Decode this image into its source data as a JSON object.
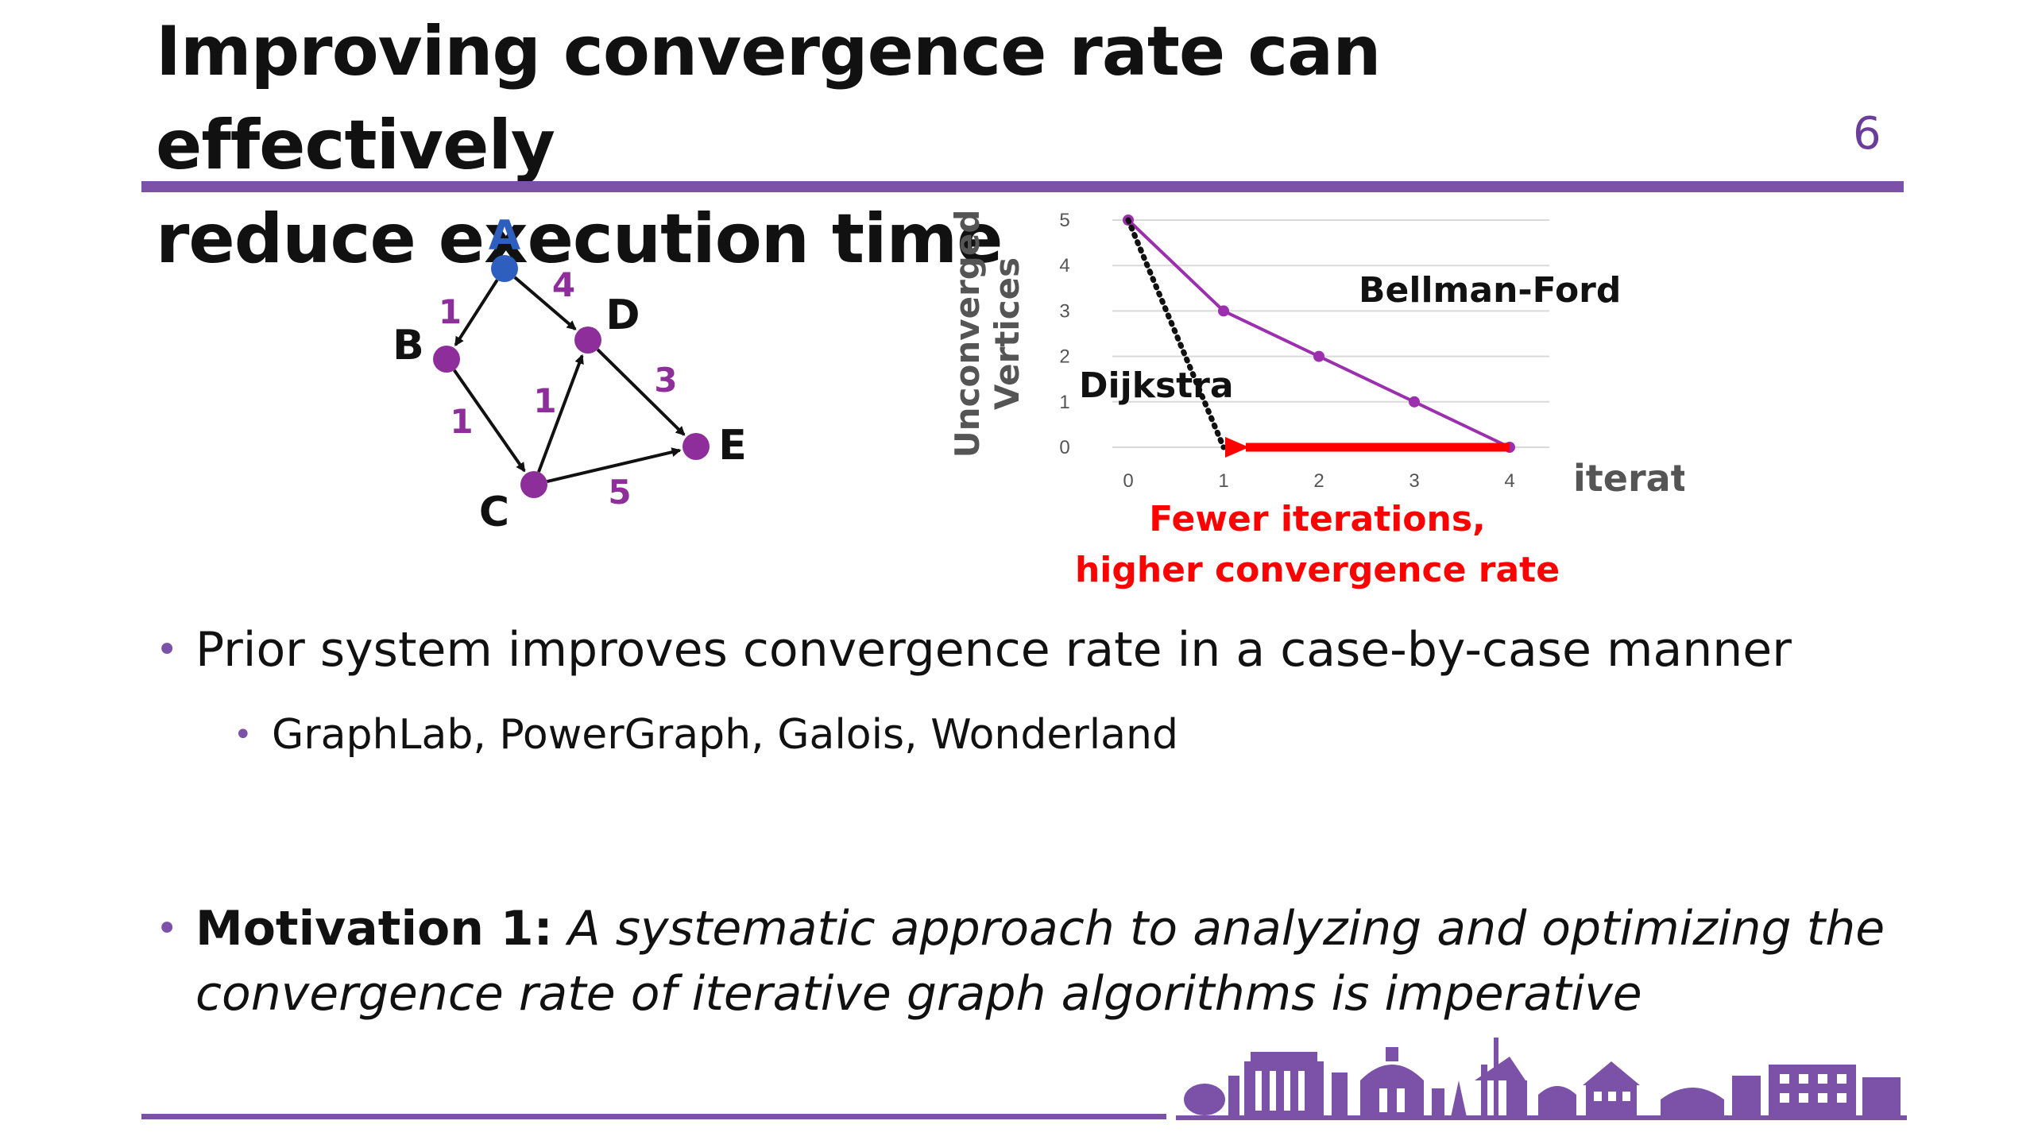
{
  "slide": {
    "title_line1": "Improving convergence rate can effectively",
    "title_line2": "reduce execution time",
    "page_number": "6"
  },
  "graph": {
    "nodes": [
      {
        "id": "A",
        "color": "#2e5fbf"
      },
      {
        "id": "B",
        "color": "#8e2e9a"
      },
      {
        "id": "C",
        "color": "#8e2e9a"
      },
      {
        "id": "D",
        "color": "#8e2e9a"
      },
      {
        "id": "E",
        "color": "#8e2e9a"
      }
    ],
    "edges": [
      {
        "from": "A",
        "to": "B",
        "weight": "1"
      },
      {
        "from": "A",
        "to": "D",
        "weight": "4"
      },
      {
        "from": "B",
        "to": "C",
        "weight": "1"
      },
      {
        "from": "C",
        "to": "D",
        "weight": "1"
      },
      {
        "from": "D",
        "to": "E",
        "weight": "3"
      },
      {
        "from": "C",
        "to": "E",
        "weight": "5"
      }
    ]
  },
  "chart_data": {
    "type": "line",
    "title": "",
    "xlabel": "iterations",
    "ylabel": "Unconverged Vertices",
    "xlim": [
      0,
      4
    ],
    "ylim": [
      0,
      5
    ],
    "x_ticks": [
      "0",
      "1",
      "2",
      "3",
      "4"
    ],
    "y_ticks": [
      "0",
      "1",
      "2",
      "3",
      "4",
      "5"
    ],
    "grid": true,
    "series": [
      {
        "name": "Bellman-Ford",
        "x": [
          0,
          1,
          2,
          3,
          4
        ],
        "y": [
          5,
          3,
          2,
          1,
          0
        ],
        "color": "#9b2fae",
        "style": "solid"
      },
      {
        "name": "Dijkstra",
        "x": [
          0,
          1
        ],
        "y": [
          5,
          0
        ],
        "color": "#111111",
        "style": "dotted"
      }
    ],
    "annotation": {
      "line1": "Fewer iterations,",
      "line2": "higher convergence rate",
      "color": "#ff0000",
      "arrow_from_x": 4,
      "arrow_to_x": 1
    }
  },
  "bullets": {
    "b1": "Prior system improves convergence rate in a case-by-case manner",
    "b2": "GraphLab, PowerGraph, Galois, Wonderland",
    "b3_bold": "Motivation 1:",
    "b3_italic": "A systematic approach to analyzing and optimizing the convergence rate of iterative graph algorithms is imperative",
    "marker": "•"
  },
  "colors": {
    "accent": "#7b52a8",
    "node_purple": "#8e2e9a",
    "node_blue": "#2e5fbf",
    "highlight_red": "#ff0000"
  }
}
